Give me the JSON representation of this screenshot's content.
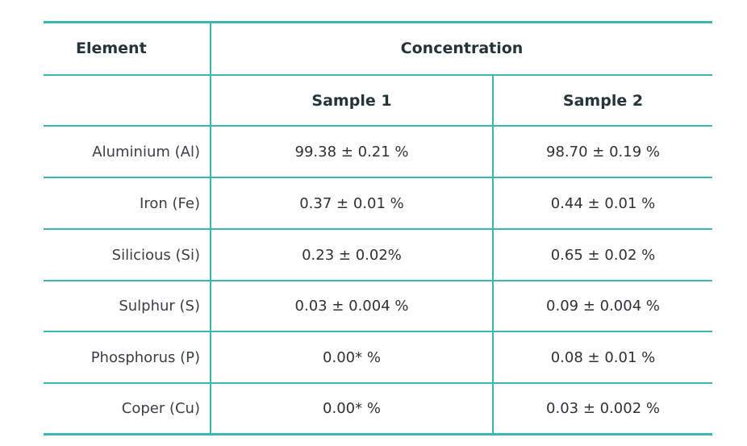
{
  "table": {
    "header": {
      "element": "Element",
      "concentration": "Concentration",
      "sample1": "Sample 1",
      "sample2": "Sample 2"
    },
    "rows": [
      {
        "element": "Aluminium (Al)",
        "sample1": "99.38 ± 0.21 %",
        "sample2": "98.70 ± 0.19 %"
      },
      {
        "element": "Iron (Fe)",
        "sample1": "0.37 ± 0.01 %",
        "sample2": "0.44 ± 0.01 %"
      },
      {
        "element": "Silicious (Si)",
        "sample1": "0.23 ± 0.02%",
        "sample2": "0.65 ± 0.02 %"
      },
      {
        "element": "Sulphur (S)",
        "sample1": "0.03 ± 0.004 %",
        "sample2": "0.09 ± 0.004 %"
      },
      {
        "element": "Phosphorus (P)",
        "sample1": "0.00* %",
        "sample2": "0.08 ± 0.01 %"
      },
      {
        "element": "Coper (Cu)",
        "sample1": "0.00* %",
        "sample2": "0.03 ± 0.002 %"
      }
    ],
    "border_color": "#3bb5b5"
  }
}
